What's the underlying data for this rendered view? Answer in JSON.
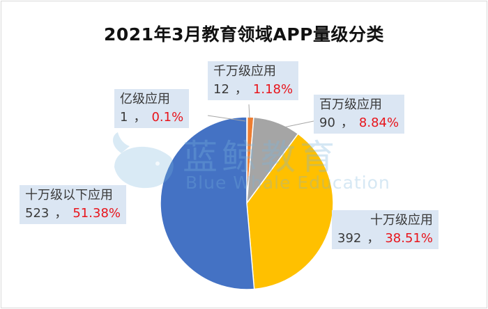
{
  "chart_data": {
    "type": "pie",
    "title": "2021年3月教育领域APP量级分类",
    "categories": [
      "亿级应用",
      "千万级应用",
      "百万级应用",
      "十万级应用",
      "十万级以下应用"
    ],
    "values": [
      1,
      12,
      90,
      392,
      523
    ],
    "percent_labels": [
      "0.1%",
      "1.18%",
      "8.84%",
      "38.51%",
      "51.38%"
    ],
    "colors": [
      "#5b9bd5",
      "#ed7d31",
      "#a5a5a5",
      "#ffc000",
      "#4472c4"
    ],
    "label_separator": "，"
  },
  "watermark": {
    "cn": "蓝鲸教育",
    "en": "Blue Whale Education",
    "color": "#78b4dc"
  }
}
